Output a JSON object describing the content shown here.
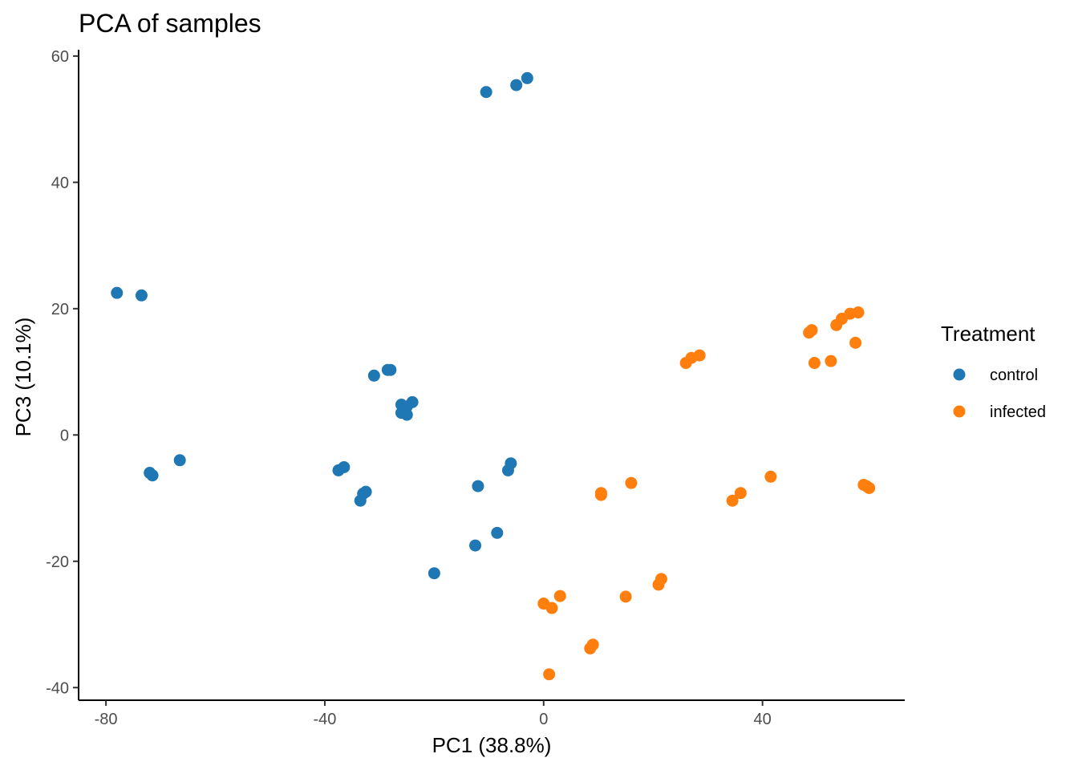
{
  "chart_data": {
    "type": "scatter",
    "title": "PCA of samples",
    "xlabel": "PC1 (38.8%)",
    "ylabel": "PC3 (10.1%)",
    "xlim": [
      -85,
      66
    ],
    "ylim": [
      -42,
      61
    ],
    "xticks": [
      -80,
      -40,
      0,
      40
    ],
    "yticks": [
      -40,
      -20,
      0,
      20,
      40,
      60
    ],
    "grid": false,
    "legend": {
      "title": "Treatment",
      "position": "right"
    },
    "series": [
      {
        "name": "control",
        "color": "#1f77b4",
        "points": [
          {
            "x": -3.0,
            "y": 56.5
          },
          {
            "x": -5.0,
            "y": 55.4
          },
          {
            "x": -10.5,
            "y": 54.3
          },
          {
            "x": -78.0,
            "y": 22.5
          },
          {
            "x": -73.5,
            "y": 22.1
          },
          {
            "x": -28.5,
            "y": 10.3
          },
          {
            "x": -28.0,
            "y": 10.3
          },
          {
            "x": -31.0,
            "y": 9.4
          },
          {
            "x": -26.0,
            "y": 4.8
          },
          {
            "x": -24.0,
            "y": 5.2
          },
          {
            "x": -25.0,
            "y": 4.5
          },
          {
            "x": -26.0,
            "y": 3.5
          },
          {
            "x": -25.0,
            "y": 3.2
          },
          {
            "x": -66.5,
            "y": -4.0
          },
          {
            "x": -72.0,
            "y": -6.0
          },
          {
            "x": -71.5,
            "y": -6.4
          },
          {
            "x": -37.5,
            "y": -5.6
          },
          {
            "x": -36.5,
            "y": -5.1
          },
          {
            "x": -33.0,
            "y": -9.3
          },
          {
            "x": -32.5,
            "y": -9.0
          },
          {
            "x": -33.5,
            "y": -10.4
          },
          {
            "x": -12.0,
            "y": -8.1
          },
          {
            "x": -6.0,
            "y": -4.5
          },
          {
            "x": -6.5,
            "y": -5.6
          },
          {
            "x": -8.5,
            "y": -15.5
          },
          {
            "x": -12.5,
            "y": -17.5
          },
          {
            "x": -20.0,
            "y": -21.9
          }
        ]
      },
      {
        "name": "infected",
        "color": "#ff7f0e",
        "points": [
          {
            "x": 26.0,
            "y": 11.4
          },
          {
            "x": 27.0,
            "y": 12.2
          },
          {
            "x": 28.5,
            "y": 12.6
          },
          {
            "x": 48.5,
            "y": 16.2
          },
          {
            "x": 49.0,
            "y": 16.6
          },
          {
            "x": 49.5,
            "y": 11.4
          },
          {
            "x": 52.5,
            "y": 11.7
          },
          {
            "x": 53.5,
            "y": 17.4
          },
          {
            "x": 54.5,
            "y": 18.4
          },
          {
            "x": 56.0,
            "y": 19.2
          },
          {
            "x": 57.5,
            "y": 19.4
          },
          {
            "x": 57.0,
            "y": 14.6
          },
          {
            "x": 58.5,
            "y": -7.9
          },
          {
            "x": 59.0,
            "y": -8.1
          },
          {
            "x": 59.5,
            "y": -8.4
          },
          {
            "x": 41.5,
            "y": -6.6
          },
          {
            "x": 36.0,
            "y": -9.2
          },
          {
            "x": 34.5,
            "y": -10.4
          },
          {
            "x": 16.0,
            "y": -7.6
          },
          {
            "x": 10.5,
            "y": -9.2
          },
          {
            "x": 10.5,
            "y": -9.5
          },
          {
            "x": 21.5,
            "y": -22.8
          },
          {
            "x": 21.0,
            "y": -23.7
          },
          {
            "x": 15.0,
            "y": -25.6
          },
          {
            "x": 3.0,
            "y": -25.5
          },
          {
            "x": 0.0,
            "y": -26.7
          },
          {
            "x": 1.5,
            "y": -27.4
          },
          {
            "x": 9.0,
            "y": -33.2
          },
          {
            "x": 8.5,
            "y": -33.8
          },
          {
            "x": 1.0,
            "y": -37.9
          }
        ]
      }
    ]
  }
}
